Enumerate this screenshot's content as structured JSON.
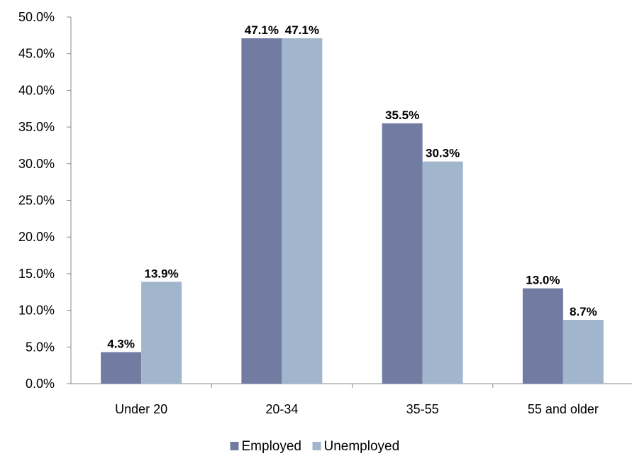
{
  "chart_data": {
    "type": "bar",
    "categories": [
      "Under 20",
      "20-34",
      "35-55",
      "55 and older"
    ],
    "series": [
      {
        "name": "Employed",
        "color": "#727ca3",
        "values": [
          4.3,
          47.1,
          35.5,
          13.0
        ],
        "labels": [
          "4.3%",
          "47.1%",
          "35.5%",
          "13.0%"
        ]
      },
      {
        "name": "Unemployed",
        "color": "#a1b6cd",
        "values": [
          13.9,
          47.1,
          30.3,
          8.7
        ],
        "labels": [
          "13.9%",
          "47.1%",
          "30.3%",
          "8.7%"
        ]
      }
    ],
    "ylim": [
      0,
      50
    ],
    "yticks": [
      "0.0%",
      "5.0%",
      "10.0%",
      "15.0%",
      "20.0%",
      "25.0%",
      "30.0%",
      "35.0%",
      "40.0%",
      "45.0%",
      "50.0%"
    ],
    "grid": false,
    "legend": "bottom-center"
  }
}
